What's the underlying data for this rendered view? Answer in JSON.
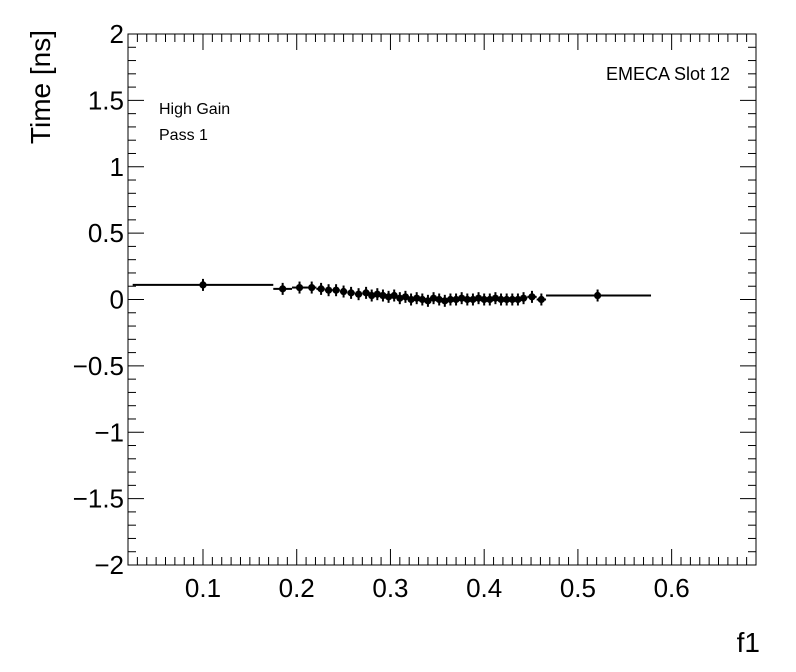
{
  "chart_data": {
    "type": "scatter",
    "title": "",
    "xlabel": "f1",
    "ylabel": "Time [ns]",
    "xlim": [
      0.02,
      0.69
    ],
    "ylim": [
      -2,
      2
    ],
    "xticks": [
      0.1,
      0.2,
      0.3,
      0.4,
      0.5,
      0.6
    ],
    "xtick_labels": [
      "0.1",
      "0.2",
      "0.3",
      "0.4",
      "0.5",
      "0.6"
    ],
    "yticks": [
      -2,
      -1.5,
      -1,
      -0.5,
      0,
      0.5,
      1,
      1.5,
      2
    ],
    "ytick_labels": [
      "−2",
      "−1.5",
      "−1",
      "−0.5",
      "0",
      "0.5",
      "1",
      "1.5",
      "2"
    ],
    "grid": false,
    "annotations": {
      "top_right": "EMECA Slot 12",
      "line1": "High Gain",
      "line2": "Pass 1"
    },
    "series": [
      {
        "points": [
          {
            "x": 0.1,
            "y": 0.11,
            "xlo": 0.025,
            "xhi": 0.175
          },
          {
            "x": 0.185,
            "y": 0.08,
            "xlo": 0.175,
            "xhi": 0.195
          },
          {
            "x": 0.203,
            "y": 0.09,
            "xlo": 0.195,
            "xhi": 0.211
          },
          {
            "x": 0.216,
            "y": 0.09,
            "xlo": 0.211,
            "xhi": 0.221
          },
          {
            "x": 0.226,
            "y": 0.08,
            "xlo": 0.221,
            "xhi": 0.23
          },
          {
            "x": 0.234,
            "y": 0.07,
            "xlo": 0.23,
            "xhi": 0.238
          },
          {
            "x": 0.242,
            "y": 0.07,
            "xlo": 0.238,
            "xhi": 0.246
          },
          {
            "x": 0.25,
            "y": 0.06,
            "xlo": 0.246,
            "xhi": 0.254
          },
          {
            "x": 0.258,
            "y": 0.05,
            "xlo": 0.254,
            "xhi": 0.262
          },
          {
            "x": 0.266,
            "y": 0.04,
            "xlo": 0.262,
            "xhi": 0.27
          },
          {
            "x": 0.274,
            "y": 0.05,
            "xlo": 0.27,
            "xhi": 0.278
          },
          {
            "x": 0.28,
            "y": 0.03,
            "xlo": 0.278,
            "xhi": 0.283
          },
          {
            "x": 0.286,
            "y": 0.04,
            "xlo": 0.283,
            "xhi": 0.289
          },
          {
            "x": 0.292,
            "y": 0.03,
            "xlo": 0.289,
            "xhi": 0.295
          },
          {
            "x": 0.298,
            "y": 0.02,
            "xlo": 0.295,
            "xhi": 0.301
          },
          {
            "x": 0.304,
            "y": 0.03,
            "xlo": 0.301,
            "xhi": 0.307
          },
          {
            "x": 0.31,
            "y": 0.01,
            "xlo": 0.307,
            "xhi": 0.313
          },
          {
            "x": 0.316,
            "y": 0.02,
            "xlo": 0.313,
            "xhi": 0.319
          },
          {
            "x": 0.322,
            "y": 0.0,
            "xlo": 0.319,
            "xhi": 0.325
          },
          {
            "x": 0.328,
            "y": 0.01,
            "xlo": 0.325,
            "xhi": 0.331
          },
          {
            "x": 0.334,
            "y": 0.0,
            "xlo": 0.331,
            "xhi": 0.337
          },
          {
            "x": 0.34,
            "y": -0.01,
            "xlo": 0.337,
            "xhi": 0.343
          },
          {
            "x": 0.346,
            "y": 0.01,
            "xlo": 0.343,
            "xhi": 0.349
          },
          {
            "x": 0.352,
            "y": 0.0,
            "xlo": 0.349,
            "xhi": 0.355
          },
          {
            "x": 0.358,
            "y": -0.01,
            "xlo": 0.355,
            "xhi": 0.361
          },
          {
            "x": 0.364,
            "y": 0.0,
            "xlo": 0.361,
            "xhi": 0.367
          },
          {
            "x": 0.37,
            "y": 0.0,
            "xlo": 0.367,
            "xhi": 0.373
          },
          {
            "x": 0.376,
            "y": 0.01,
            "xlo": 0.373,
            "xhi": 0.379
          },
          {
            "x": 0.382,
            "y": 0.0,
            "xlo": 0.379,
            "xhi": 0.385
          },
          {
            "x": 0.388,
            "y": 0.0,
            "xlo": 0.385,
            "xhi": 0.391
          },
          {
            "x": 0.394,
            "y": 0.01,
            "xlo": 0.391,
            "xhi": 0.397
          },
          {
            "x": 0.4,
            "y": 0.0,
            "xlo": 0.397,
            "xhi": 0.403
          },
          {
            "x": 0.406,
            "y": 0.0,
            "xlo": 0.403,
            "xhi": 0.409
          },
          {
            "x": 0.412,
            "y": 0.01,
            "xlo": 0.409,
            "xhi": 0.415
          },
          {
            "x": 0.418,
            "y": 0.0,
            "xlo": 0.415,
            "xhi": 0.421
          },
          {
            "x": 0.424,
            "y": 0.0,
            "xlo": 0.421,
            "xhi": 0.427
          },
          {
            "x": 0.43,
            "y": 0.0,
            "xlo": 0.427,
            "xhi": 0.433
          },
          {
            "x": 0.436,
            "y": 0.0,
            "xlo": 0.433,
            "xhi": 0.439
          },
          {
            "x": 0.442,
            "y": 0.01,
            "xlo": 0.439,
            "xhi": 0.446
          },
          {
            "x": 0.451,
            "y": 0.02,
            "xlo": 0.446,
            "xhi": 0.456
          },
          {
            "x": 0.461,
            "y": 0.0,
            "xlo": 0.456,
            "xhi": 0.466
          },
          {
            "x": 0.521,
            "y": 0.03,
            "xlo": 0.466,
            "xhi": 0.578
          }
        ]
      }
    ]
  }
}
